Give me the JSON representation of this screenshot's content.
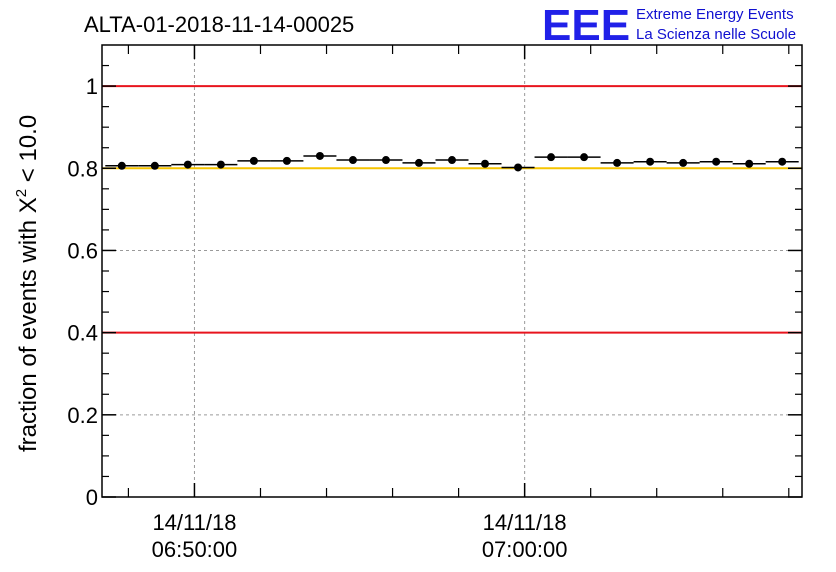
{
  "chart_data": {
    "type": "scatter",
    "title": "ALTA-01-2018-11-14-00025",
    "xlabel": "",
    "ylabel_prefix": "fraction of events with ",
    "ylabel_symbol": "X",
    "ylabel_exponent": "2",
    "ylabel_suffix": " < 10.0",
    "ylim": [
      0,
      1.1
    ],
    "xlim_minutes": [
      -2.8,
      18.4
    ],
    "yticks": [
      "0",
      "0.2",
      "0.4",
      "0.6",
      "0.8",
      "1"
    ],
    "ytick_values": [
      0,
      0.2,
      0.4,
      0.6,
      0.8,
      1.0
    ],
    "x_time_labels": [
      {
        "minutes": 0,
        "date": "14/11/18",
        "time": "06:50:00"
      },
      {
        "minutes": 10,
        "date": "14/11/18",
        "time": "07:00:00"
      }
    ],
    "x_minor_tick_minutes": [
      -2,
      2,
      4,
      6,
      8,
      12,
      14,
      16,
      18
    ],
    "x_bin_width_minutes": 1.0,
    "points": [
      {
        "x": -2.2,
        "y": 0.806
      },
      {
        "x": -1.2,
        "y": 0.806
      },
      {
        "x": -0.2,
        "y": 0.809
      },
      {
        "x": 0.8,
        "y": 0.809
      },
      {
        "x": 1.8,
        "y": 0.818
      },
      {
        "x": 2.8,
        "y": 0.818
      },
      {
        "x": 3.8,
        "y": 0.83
      },
      {
        "x": 4.8,
        "y": 0.82
      },
      {
        "x": 5.8,
        "y": 0.82
      },
      {
        "x": 6.8,
        "y": 0.813
      },
      {
        "x": 7.8,
        "y": 0.82
      },
      {
        "x": 8.8,
        "y": 0.811
      },
      {
        "x": 9.8,
        "y": 0.802
      },
      {
        "x": 10.8,
        "y": 0.827
      },
      {
        "x": 11.8,
        "y": 0.827
      },
      {
        "x": 12.8,
        "y": 0.813
      },
      {
        "x": 13.8,
        "y": 0.816
      },
      {
        "x": 14.8,
        "y": 0.813
      },
      {
        "x": 15.8,
        "y": 0.816
      },
      {
        "x": 16.8,
        "y": 0.811
      },
      {
        "x": 17.8,
        "y": 0.816
      }
    ],
    "reference_lines": [
      {
        "y": 1.0,
        "color": "#e8141e"
      },
      {
        "y": 0.4,
        "color": "#e8141e"
      },
      {
        "y": 0.8,
        "color": "#f5c400"
      }
    ],
    "grid": true
  },
  "logo": {
    "mark": "EEE",
    "line1": "Extreme Energy Events",
    "line2": "La Scienza nelle Scuole"
  },
  "colors": {
    "axis": "#000000",
    "grid": "#9a9a9a",
    "marker": "#000000",
    "logo_blue": "#2020e8"
  }
}
